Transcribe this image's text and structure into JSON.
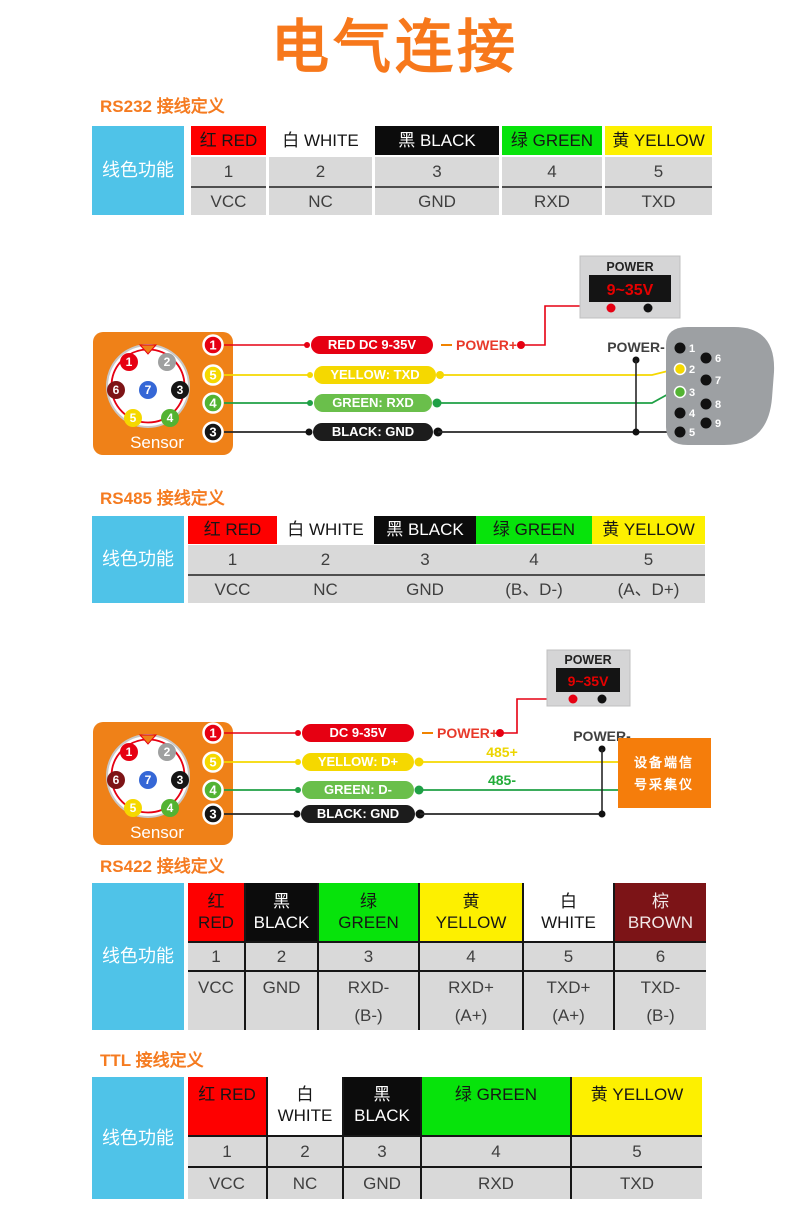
{
  "page": {
    "title": "电气连接"
  },
  "tables": {
    "rs232": {
      "heading": "RS232 接线定义",
      "row_label": "线色功能",
      "headers": [
        "红 RED",
        "白 WHITE",
        "黑 BLACK",
        "绿 GREEN",
        "黄 YELLOW"
      ],
      "header_colors": [
        {
          "bg": "#fe0000",
          "fg": "#161616"
        },
        {
          "bg": "#ffffff",
          "fg": "#161616"
        },
        {
          "bg": "#0c0c0c",
          "fg": "#ffffff"
        },
        {
          "bg": "#07e30b",
          "fg": "#161616"
        },
        {
          "bg": "#fdf000",
          "fg": "#161616"
        }
      ],
      "pins": [
        "1",
        "2",
        "3",
        "4",
        "5"
      ],
      "functions": [
        "VCC",
        "NC",
        "GND",
        "RXD",
        "TXD"
      ]
    },
    "rs485": {
      "heading": "RS485 接线定义",
      "row_label": "线色功能",
      "headers": [
        "红 RED",
        "白 WHITE",
        "黑 BLACK",
        "绿 GREEN",
        "黄 YELLOW"
      ],
      "header_colors": [
        {
          "bg": "#fe0000",
          "fg": "#161616"
        },
        {
          "bg": "#ffffff",
          "fg": "#161616"
        },
        {
          "bg": "#0c0c0c",
          "fg": "#ffffff"
        },
        {
          "bg": "#07e30b",
          "fg": "#161616"
        },
        {
          "bg": "#fdf000",
          "fg": "#161616"
        }
      ],
      "pins": [
        "1",
        "2",
        "3",
        "4",
        "5"
      ],
      "functions": [
        "VCC",
        "NC",
        "GND",
        "(B、D-)",
        "(A、D+)"
      ]
    },
    "rs422": {
      "heading": "RS422 接线定义",
      "row_label": "线色功能",
      "headers": [
        [
          "红",
          "RED"
        ],
        [
          "黑",
          "BLACK"
        ],
        [
          "绿",
          "GREEN"
        ],
        [
          "黄",
          "YELLOW"
        ],
        [
          "白",
          "WHITE"
        ],
        [
          "棕",
          "BROWN"
        ]
      ],
      "header_colors": [
        {
          "bg": "#fe0000",
          "fg": "#161616"
        },
        {
          "bg": "#0c0c0c",
          "fg": "#ffffff"
        },
        {
          "bg": "#07e30b",
          "fg": "#161616"
        },
        {
          "bg": "#fdf000",
          "fg": "#161616"
        },
        {
          "bg": "#ffffff",
          "fg": "#161616"
        },
        {
          "bg": "#7c1417",
          "fg": "#f2eaea"
        }
      ],
      "pins": [
        "1",
        "2",
        "3",
        "4",
        "5",
        "6"
      ],
      "functions": [
        [
          "VCC"
        ],
        [
          "GND"
        ],
        [
          "RXD-",
          "(B-)"
        ],
        [
          "RXD+",
          "(A+)"
        ],
        [
          "TXD+",
          "(A+)"
        ],
        [
          "TXD-",
          "(B-)"
        ]
      ]
    },
    "ttl": {
      "heading": "TTL 接线定义",
      "row_label": "线色功能",
      "headers": [
        [
          "红 RED"
        ],
        [
          "白",
          "WHITE"
        ],
        [
          "黑",
          "BLACK"
        ],
        [
          "绿 GREEN"
        ],
        [
          "黄 YELLOW"
        ]
      ],
      "header_colors": [
        {
          "bg": "#fe0000",
          "fg": "#161616"
        },
        {
          "bg": "#ffffff",
          "fg": "#161616"
        },
        {
          "bg": "#0c0c0c",
          "fg": "#ffffff"
        },
        {
          "bg": "#07e30b",
          "fg": "#161616"
        },
        {
          "bg": "#fdf000",
          "fg": "#161616"
        }
      ],
      "pins": [
        "1",
        "2",
        "3",
        "4",
        "5"
      ],
      "functions": [
        "VCC",
        "NC",
        "GND",
        "RXD",
        "TXD"
      ]
    }
  },
  "sensor": {
    "label": "Sensor",
    "pins": [
      "1",
      "2",
      "6",
      "7",
      "3",
      "5",
      "4"
    ],
    "taps": [
      "1",
      "5",
      "4",
      "3"
    ]
  },
  "diagram_rs232": {
    "labels": [
      "RED DC 9-35V",
      "YELLOW:  TXD",
      "GREEN:  RXD",
      "BLACK:  GND"
    ],
    "power_plus": "POWER+",
    "power_minus": "POWER-",
    "power_title": "POWER",
    "power_value": "9~35V",
    "db9_pins": [
      "1",
      "2",
      "3",
      "4",
      "5",
      "6",
      "7",
      "8",
      "9"
    ]
  },
  "diagram_rs485": {
    "labels": [
      "DC 9-35V",
      "YELLOW:  D+",
      "GREEN:  D-",
      "BLACK:  GND"
    ],
    "power_plus": "POWER+",
    "power_minus": "POWER-",
    "power_title": "POWER",
    "power_value": "9~35V",
    "bus_plus": "485+",
    "bus_minus": "485-",
    "device_line1": "设备端信",
    "device_line2": "号采集仪"
  },
  "colors": {
    "brand_orange": "#f7781b",
    "sensor_orange": "#ef8118",
    "device_orange": "#f57d0b",
    "table_cyan": "#4fc3e8",
    "wire_red": "#e60012",
    "wire_yellow": "#f5d800",
    "wire_green": "#1fa045",
    "pill_green": "#6abf4b",
    "wire_black": "#262626",
    "cell_grey": "#d9d9d9",
    "brown": "#7c1417"
  }
}
